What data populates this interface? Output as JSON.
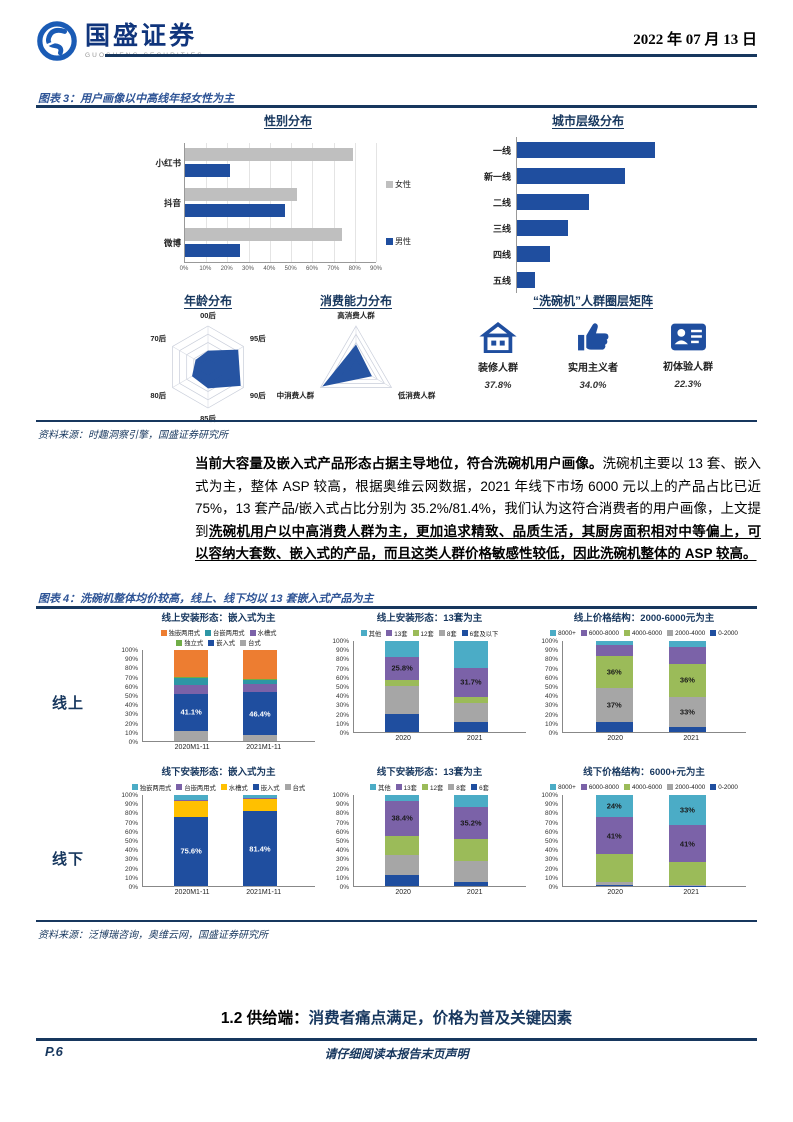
{
  "page": {
    "header": {
      "brand_cn": "国盛证券",
      "brand_en": "GUOSHENG SECURITIES",
      "date": "2022 年 07 月 13 日"
    },
    "figure3": {
      "caption": "图表 3：用户画像以中高线年轻女性为主",
      "source": "资料来源：时趣洞察引擎，国盛证券研究所",
      "matrix": {
        "title": "“洗碗机”人群圈层矩阵",
        "items": [
          {
            "icon": "house-icon",
            "label": "装修人群",
            "value": "37.8%"
          },
          {
            "icon": "thumbs-up-icon",
            "label": "实用主义者",
            "value": "34.0%"
          },
          {
            "icon": "id-card-icon",
            "label": "初体验人群",
            "value": "22.3%"
          }
        ]
      }
    },
    "body_paragraph": {
      "bold_lead": "当前大容量及嵌入式产品形态占据主导地位，符合洗碗机用户画像。",
      "normal": "洗碗机主要以 13 套、嵌入式为主，整体 ASP 较高，根据奥维云网数据，2021 年线下市场 6000 元以上的产品占比已近 75%，13 套产品/嵌入式占比分别为 35.2%/81.4%，我们认为这符合消费者的用户画像，上文提到",
      "bold_underline": "洗碗机用户以中高消费人群为主，更加追求精致、品质生活，其厨房面积相对中等偏上，可以容纳大套数、嵌入式的产品，而且这类人群价格敏感性较低，因此洗碗机整体的 ASP 较高。"
    },
    "figure4": {
      "caption": "图表 4：洗碗机整体均价较高，线上、线下均以 13 套嵌入式产品为主",
      "row_labels": [
        "线上",
        "线下"
      ],
      "percent_ticks": [
        "100%",
        "90%",
        "80%",
        "70%",
        "60%",
        "50%",
        "40%",
        "30%",
        "20%",
        "10%",
        "0%"
      ],
      "source": "资料来源：泛博瑞咨询，奥维云网，国盛证券研究所"
    },
    "section_heading": {
      "number": "1.2 供给端：",
      "title": "消费者痛点满足，价格为普及关键因素"
    },
    "footer": {
      "page_number": "P.6",
      "disclaimer": "请仔细阅读本报告末页声明"
    },
    "colors": {
      "rule_navy": "#17375E",
      "caption_blue": "#2E5496",
      "bar_navy": "#1F4E9F"
    }
  },
  "chart_data": [
    {
      "id": "gender",
      "type": "bar",
      "orientation": "horizontal",
      "grouped": true,
      "title": "性别分布",
      "categories": [
        "小红书",
        "抖音",
        "微博"
      ],
      "series": [
        {
          "name": "女性",
          "color": "#BFBFBF",
          "values": [
            79,
            53,
            74
          ]
        },
        {
          "name": "男性",
          "color": "#1F4E9F",
          "values": [
            21,
            47,
            26
          ]
        }
      ],
      "xlim": [
        0,
        90
      ],
      "x_ticks": [
        "0%",
        "10%",
        "20%",
        "30%",
        "40%",
        "50%",
        "60%",
        "70%",
        "80%",
        "90%"
      ],
      "legend_position": "right",
      "grid": true
    },
    {
      "id": "city",
      "type": "bar",
      "orientation": "horizontal",
      "title": "城市层级分布",
      "categories": [
        "一线",
        "新一线",
        "二线",
        "三线",
        "四线",
        "五线"
      ],
      "values": [
        100,
        78,
        52,
        37,
        24,
        13
      ],
      "values_note": "relative length, no value axis labels shown",
      "color": "#1F4E9F",
      "xlim": [
        0,
        150
      ]
    },
    {
      "id": "age",
      "type": "radar",
      "title": "年龄分布",
      "axes": [
        "00后",
        "95后",
        "90后",
        "85后",
        "80后",
        "70后"
      ],
      "values": [
        40,
        85,
        92,
        52,
        45,
        35
      ],
      "max": 100,
      "rings": 5,
      "color": "#1F4E9F"
    },
    {
      "id": "consume",
      "type": "radar",
      "title": "消费能力分布",
      "axes": [
        "高消费人群",
        "低消费人群",
        "中消费人群"
      ],
      "values": [
        55,
        45,
        95
      ],
      "max": 100,
      "rings": 5,
      "color": "#1F4E9F"
    },
    {
      "id": "online-form",
      "type": "bar",
      "stacked": true,
      "title": "线上安装形态：嵌入式为主",
      "categories": [
        "2020M1-11",
        "2021M1-11"
      ],
      "series": [
        {
          "name": "台式",
          "color": "#A6A6A6",
          "values": [
            11,
            7
          ]
        },
        {
          "name": "嵌入式",
          "color": "#1F4E9F",
          "values": [
            41.1,
            46.4
          ],
          "labels": [
            "41.1%",
            "46.4%"
          ],
          "label_color": "#FFFFFF"
        },
        {
          "name": "水槽式",
          "color": "#7B62A8",
          "values": [
            9,
            9
          ]
        },
        {
          "name": "台嵌两用式",
          "color": "#2E96A5",
          "values": [
            8,
            5
          ]
        },
        {
          "name": "独立式",
          "color": "#70AD47",
          "values": [
            1,
            1
          ]
        },
        {
          "name": "独嵌两用式",
          "color": "#ED7D31",
          "values": [
            29.9,
            31.6
          ]
        }
      ],
      "legend_order": [
        "独嵌两用式",
        "台嵌两用式",
        "水槽式",
        "独立式",
        "嵌入式",
        "台式"
      ],
      "ylim": [
        0,
        100
      ]
    },
    {
      "id": "online-sets",
      "type": "bar",
      "stacked": true,
      "title": "线上安装形态：13套为主",
      "categories": [
        "2020",
        "2021"
      ],
      "series": [
        {
          "name": "6套及以下",
          "color": "#1F4E9F",
          "values": [
            20,
            11
          ]
        },
        {
          "name": "8套",
          "color": "#A6A6A6",
          "values": [
            31,
            21
          ]
        },
        {
          "name": "12套",
          "color": "#9BBB59",
          "values": [
            6,
            7
          ]
        },
        {
          "name": "13套",
          "color": "#7B62A8",
          "values": [
            25.8,
            31.7
          ],
          "labels": [
            "25.8%",
            "31.7%"
          ]
        },
        {
          "name": "其他",
          "color": "#4BACC6",
          "values": [
            17.2,
            29.3
          ]
        }
      ],
      "legend_order": [
        "其他",
        "13套",
        "12套",
        "8套",
        "6套及以下"
      ],
      "ylim": [
        0,
        100
      ]
    },
    {
      "id": "online-price",
      "type": "bar",
      "stacked": true,
      "title": "线上价格结构：2000-6000元为主",
      "categories": [
        "2020",
        "2021"
      ],
      "series": [
        {
          "name": "0-2000",
          "color": "#1F4E9F",
          "values": [
            11,
            6
          ]
        },
        {
          "name": "2000-4000",
          "color": "#A6A6A6",
          "values": [
            37,
            33
          ],
          "labels": [
            "37%",
            "33%"
          ]
        },
        {
          "name": "4000-6000",
          "color": "#9BBB59",
          "values": [
            36,
            36
          ],
          "labels": [
            "36%",
            "36%"
          ]
        },
        {
          "name": "6000-8000",
          "color": "#7B62A8",
          "values": [
            12,
            18
          ]
        },
        {
          "name": "8000+",
          "color": "#4BACC6",
          "values": [
            4,
            7
          ]
        }
      ],
      "legend_order": [
        "8000+",
        "6000-8000",
        "4000-6000",
        "2000-4000",
        "0-2000"
      ],
      "ylim": [
        0,
        100
      ]
    },
    {
      "id": "offline-form",
      "type": "bar",
      "stacked": true,
      "title": "线下安装形态：嵌入式为主",
      "categories": [
        "2020M1-11",
        "2021M1-11"
      ],
      "series": [
        {
          "name": "台式",
          "color": "#A6A6A6",
          "values": [
            0.5,
            0.5
          ]
        },
        {
          "name": "嵌入式",
          "color": "#1F4E9F",
          "values": [
            75.6,
            81.4
          ],
          "labels": [
            "75.6%",
            "81.4%"
          ],
          "label_color": "#FFFFFF"
        },
        {
          "name": "水槽式",
          "color": "#FFC000",
          "values": [
            17.9,
            14.1
          ]
        },
        {
          "name": "台嵌两用式",
          "color": "#7B62A8",
          "values": [
            1,
            1
          ]
        },
        {
          "name": "独嵌两用式",
          "color": "#4BACC6",
          "values": [
            5,
            3
          ]
        }
      ],
      "legend_order": [
        "独嵌两用式",
        "台嵌两用式",
        "水槽式",
        "嵌入式",
        "台式"
      ],
      "ylim": [
        0,
        100
      ]
    },
    {
      "id": "offline-sets",
      "type": "bar",
      "stacked": true,
      "title": "线下安装形态：13套为主",
      "categories": [
        "2020",
        "2021"
      ],
      "series": [
        {
          "name": "6套",
          "color": "#1F4E9F",
          "values": [
            12,
            4
          ]
        },
        {
          "name": "8套",
          "color": "#A6A6A6",
          "values": [
            22,
            23
          ]
        },
        {
          "name": "12套",
          "color": "#9BBB59",
          "values": [
            21,
            25
          ]
        },
        {
          "name": "13套",
          "color": "#7B62A8",
          "values": [
            38.4,
            35.2
          ],
          "labels": [
            "38.4%",
            "35.2%"
          ]
        },
        {
          "name": "其他",
          "color": "#4BACC6",
          "values": [
            6.6,
            12.8
          ]
        }
      ],
      "legend_order": [
        "其他",
        "13套",
        "12套",
        "8套",
        "6套"
      ],
      "ylim": [
        0,
        100
      ]
    },
    {
      "id": "offline-price",
      "type": "bar",
      "stacked": true,
      "title": "线下价格结构：6000+元为主",
      "categories": [
        "2020",
        "2021"
      ],
      "series": [
        {
          "name": "0-2000",
          "color": "#1F4E9F",
          "values": [
            1,
            0.5
          ]
        },
        {
          "name": "2000-4000",
          "color": "#A6A6A6",
          "values": [
            3,
            0.5
          ]
        },
        {
          "name": "4000-6000",
          "color": "#9BBB59",
          "values": [
            31,
            25
          ]
        },
        {
          "name": "6000-8000",
          "color": "#7B62A8",
          "values": [
            41,
            41
          ],
          "labels": [
            "41%",
            "41%"
          ]
        },
        {
          "name": "8000+",
          "color": "#4BACC6",
          "values": [
            24,
            33
          ],
          "labels": [
            "24%",
            "33%"
          ]
        }
      ],
      "legend_order": [
        "8000+",
        "6000-8000",
        "4000-6000",
        "2000-4000",
        "0-2000"
      ],
      "ylim": [
        0,
        100
      ]
    }
  ]
}
